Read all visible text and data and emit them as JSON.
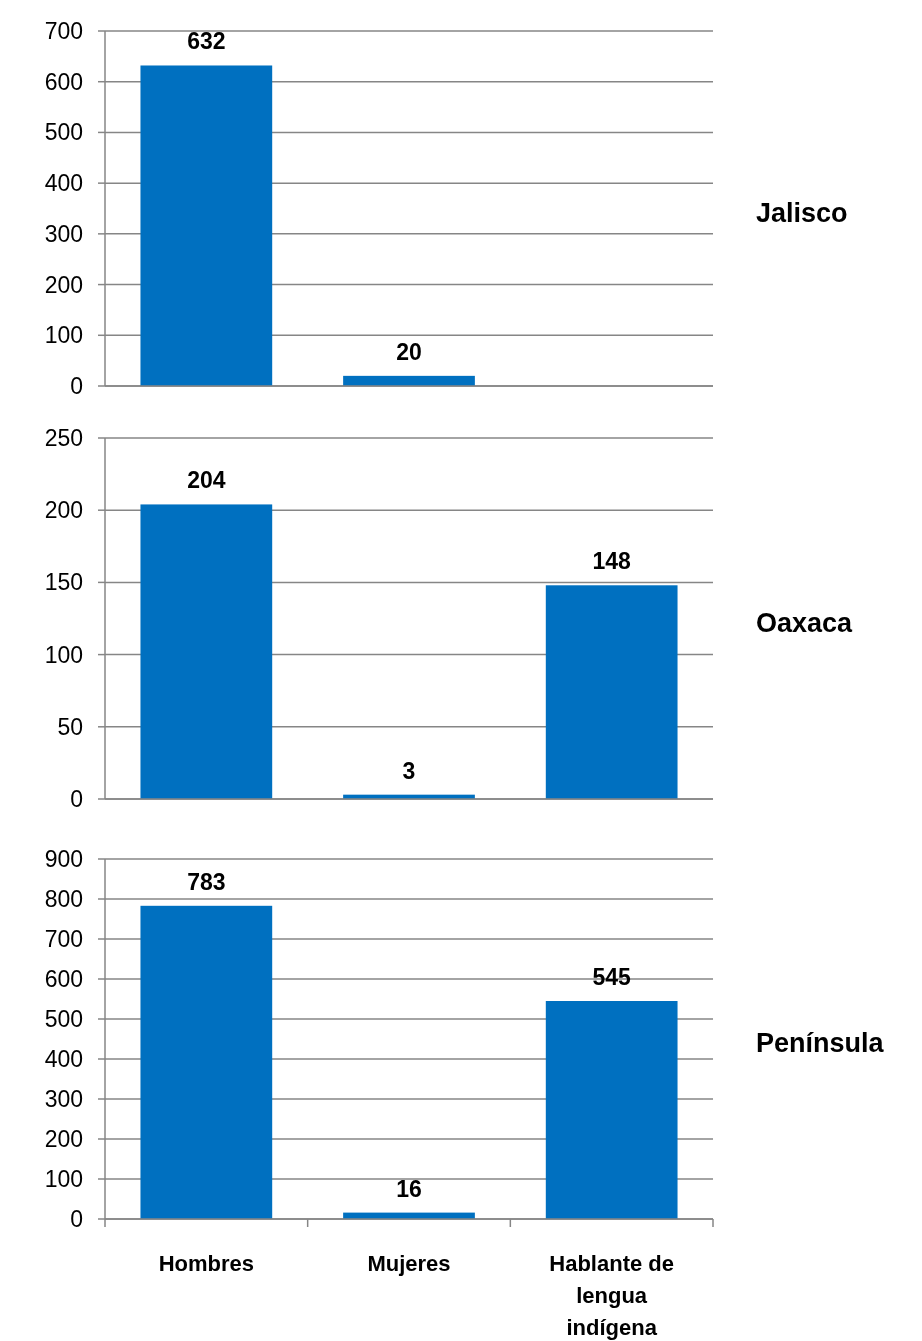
{
  "chart_data": [
    {
      "type": "bar",
      "annotations": [
        "Jalisco"
      ],
      "categories": [
        null,
        null,
        null
      ],
      "values": [
        632,
        20,
        null
      ],
      "color": "#0070c0",
      "ylim": [
        0,
        700
      ],
      "yticks": [
        0,
        100,
        200,
        300,
        400,
        500,
        600,
        700
      ],
      "grid": "y",
      "data_labels": true,
      "tick_labels": "y"
    },
    {
      "type": "bar",
      "annotations": [
        "Oaxaca"
      ],
      "categories": [
        null,
        null,
        null
      ],
      "values": [
        204,
        3,
        148
      ],
      "color": "#0070c0",
      "ylim": [
        0,
        250
      ],
      "yticks": [
        0,
        50,
        100,
        150,
        200,
        250
      ],
      "grid": "y",
      "data_labels": true,
      "tick_labels": "y"
    },
    {
      "type": "bar",
      "annotations": [
        "Península"
      ],
      "categories": [
        "Hombres",
        "Mujeres",
        "Hablante de lengua indígena"
      ],
      "values": [
        783,
        16,
        545
      ],
      "color": "#0070c0",
      "ylim": [
        0,
        900
      ],
      "yticks": [
        0,
        100,
        200,
        300,
        400,
        500,
        600,
        700,
        800,
        900
      ],
      "grid": "y",
      "data_labels": true
    }
  ]
}
